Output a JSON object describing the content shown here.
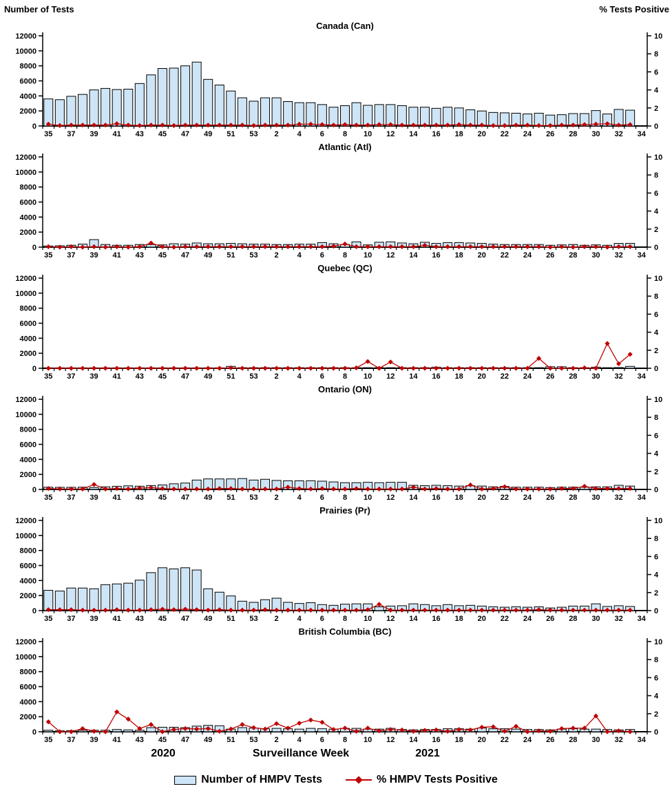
{
  "header": {
    "left_axis_title": "Number of Tests",
    "right_axis_title": "% Tests Positive"
  },
  "axes": {
    "weeks": [
      "35",
      "36",
      "37",
      "38",
      "39",
      "40",
      "41",
      "42",
      "43",
      "44",
      "45",
      "46",
      "47",
      "48",
      "49",
      "50",
      "51",
      "52",
      "53",
      "1",
      "2",
      "3",
      "4",
      "5",
      "6",
      "7",
      "8",
      "9",
      "10",
      "11",
      "12",
      "13",
      "14",
      "15",
      "16",
      "17",
      "18",
      "19",
      "20",
      "21",
      "22",
      "23",
      "24",
      "25",
      "26",
      "27",
      "28",
      "29",
      "30",
      "31",
      "32",
      "33",
      "34"
    ],
    "left_ticks": [
      0,
      2000,
      4000,
      6000,
      8000,
      10000,
      12000
    ],
    "right_ticks": [
      0,
      2,
      4,
      6,
      8,
      10
    ],
    "left_max": 12000,
    "right_max": 10
  },
  "footer": {
    "year_left": "2020",
    "xlabel": "Surveillance Week",
    "year_right": "2021"
  },
  "legend": {
    "bar_label": "Number of HMPV Tests",
    "line_label": "% HMPV Tests Positive"
  },
  "colors": {
    "bar_fill": "#CDE5F6",
    "bar_stroke": "#000000",
    "line": "#C00000",
    "axis": "#000000"
  },
  "chart_data": [
    {
      "type": "bar+line",
      "title": "Canada (Can)",
      "series": [
        {
          "name": "Number of HMPV Tests",
          "type": "bar",
          "axis": "left",
          "values": [
            3600,
            3500,
            3950,
            4200,
            4800,
            5000,
            4850,
            4900,
            5650,
            6800,
            7650,
            7700,
            8000,
            8500,
            6200,
            5450,
            4650,
            3750,
            3300,
            3750,
            3750,
            3250,
            3100,
            3100,
            2850,
            2500,
            2700,
            3100,
            2750,
            2850,
            2850,
            2700,
            2500,
            2500,
            2350,
            2500,
            2400,
            2150,
            2000,
            1800,
            1750,
            1700,
            1600,
            1700,
            1450,
            1500,
            1650,
            1650,
            2050,
            1600,
            2200,
            2100,
            null
          ]
        },
        {
          "name": "% HMPV Tests Positive",
          "type": "line",
          "axis": "right",
          "values": [
            0.2,
            0.05,
            0.1,
            0.1,
            0.1,
            0.1,
            0.25,
            0.1,
            0.05,
            0.1,
            0.1,
            0.05,
            0.1,
            0.1,
            0.1,
            0.1,
            0.1,
            0.1,
            0.05,
            0.1,
            0.1,
            0.1,
            0.2,
            0.2,
            0.15,
            0.1,
            0.15,
            0.1,
            0.1,
            0.15,
            0.15,
            0.1,
            0.1,
            0.1,
            0.1,
            0.1,
            0.15,
            0.1,
            0.1,
            0.05,
            0.05,
            0.1,
            0.1,
            0.05,
            0.05,
            0.1,
            0.1,
            0.15,
            0.2,
            0.25,
            0.1,
            0.15,
            null
          ]
        }
      ]
    },
    {
      "type": "bar+line",
      "title": "Atlantic (Atl)",
      "series": [
        {
          "name": "Number of HMPV Tests",
          "type": "bar",
          "axis": "left",
          "values": [
            150,
            180,
            250,
            400,
            1000,
            350,
            250,
            250,
            350,
            350,
            300,
            450,
            400,
            550,
            450,
            450,
            500,
            450,
            400,
            400,
            350,
            350,
            400,
            400,
            600,
            450,
            350,
            700,
            300,
            650,
            700,
            550,
            450,
            650,
            500,
            600,
            600,
            550,
            500,
            400,
            350,
            350,
            350,
            350,
            250,
            300,
            350,
            250,
            300,
            250,
            500,
            500,
            null
          ]
        },
        {
          "name": "% HMPV Tests Positive",
          "type": "line",
          "axis": "right",
          "values": [
            0.05,
            0,
            0.05,
            0,
            0.05,
            0,
            0.05,
            0,
            0.05,
            0.45,
            0.05,
            0,
            0.05,
            0.05,
            0.05,
            0.05,
            0.05,
            0.05,
            0.05,
            0.05,
            0.05,
            0.05,
            0.05,
            0.05,
            0.05,
            0.1,
            0.35,
            0.05,
            0.05,
            0.05,
            0.05,
            0.05,
            0.05,
            0.2,
            0.05,
            0.05,
            0.05,
            0.05,
            0.05,
            0.05,
            0.05,
            0.05,
            0.05,
            0.05,
            0,
            0.05,
            0,
            0.05,
            0.05,
            0,
            0.05,
            0.05,
            null
          ]
        }
      ]
    },
    {
      "type": "bar+line",
      "title": "Quebec (QC)",
      "series": [
        {
          "name": "Number of HMPV Tests",
          "type": "bar",
          "axis": "left",
          "values": [
            60,
            60,
            60,
            60,
            60,
            60,
            60,
            60,
            60,
            60,
            60,
            60,
            60,
            60,
            60,
            60,
            250,
            80,
            80,
            80,
            80,
            80,
            80,
            80,
            80,
            80,
            80,
            80,
            80,
            80,
            80,
            80,
            80,
            80,
            150,
            80,
            80,
            80,
            80,
            80,
            80,
            80,
            80,
            80,
            200,
            200,
            80,
            80,
            150,
            80,
            100,
            250,
            null
          ]
        },
        {
          "name": "% HMPV Tests Positive",
          "type": "line",
          "axis": "right",
          "values": [
            0,
            0,
            0,
            0,
            0,
            0,
            0,
            0,
            0,
            0,
            0,
            0,
            0,
            0,
            0,
            0,
            0.05,
            0,
            0,
            0,
            0,
            0,
            0,
            0,
            0,
            0,
            0,
            0.05,
            0.75,
            0,
            0.7,
            0,
            0,
            0,
            0,
            0,
            0,
            0,
            0,
            0,
            0,
            0,
            0,
            1.1,
            0,
            0,
            0,
            0.05,
            0,
            2.75,
            0.5,
            1.55,
            null
          ]
        }
      ]
    },
    {
      "type": "bar+line",
      "title": "Ontario (ON)",
      "series": [
        {
          "name": "Number of HMPV Tests",
          "type": "bar",
          "axis": "left",
          "values": [
            300,
            280,
            280,
            300,
            250,
            350,
            420,
            480,
            430,
            520,
            600,
            750,
            850,
            1250,
            1400,
            1400,
            1400,
            1450,
            1250,
            1350,
            1200,
            1150,
            1150,
            1150,
            1100,
            1000,
            900,
            900,
            950,
            900,
            950,
            950,
            550,
            500,
            550,
            500,
            450,
            500,
            450,
            350,
            400,
            300,
            300,
            300,
            250,
            300,
            300,
            300,
            350,
            350,
            550,
            450,
            null
          ]
        },
        {
          "name": "% HMPV Tests Positive",
          "type": "line",
          "axis": "right",
          "values": [
            0.1,
            0.05,
            0.05,
            0.05,
            0.55,
            0.05,
            0.1,
            0.05,
            0.15,
            0.2,
            0.1,
            0.05,
            0.05,
            0.05,
            0.05,
            0.1,
            0.1,
            0.05,
            0.05,
            0.05,
            0.05,
            0.25,
            0.1,
            0.05,
            0.1,
            0.05,
            0.05,
            0.1,
            0.05,
            0.05,
            0.05,
            0.05,
            0.25,
            0.05,
            0.1,
            0.05,
            0.05,
            0.5,
            0.05,
            0.1,
            0.3,
            0.05,
            0.05,
            0.05,
            0.05,
            0.1,
            0.1,
            0.35,
            0.1,
            0.1,
            0.1,
            0.1,
            null
          ]
        }
      ]
    },
    {
      "type": "bar+line",
      "title": "Prairies (Pr)",
      "series": [
        {
          "name": "Number of HMPV Tests",
          "type": "bar",
          "axis": "left",
          "values": [
            2700,
            2600,
            3000,
            3000,
            2900,
            3450,
            3550,
            3650,
            4050,
            5050,
            5700,
            5550,
            5700,
            5400,
            2900,
            2450,
            1950,
            1250,
            1100,
            1450,
            1650,
            1100,
            950,
            1050,
            800,
            700,
            850,
            900,
            900,
            500,
            600,
            650,
            900,
            800,
            650,
            800,
            650,
            700,
            600,
            500,
            450,
            500,
            450,
            500,
            350,
            450,
            600,
            600,
            900,
            550,
            650,
            550,
            null
          ]
        },
        {
          "name": "% HMPV Tests Positive",
          "type": "line",
          "axis": "right",
          "values": [
            0.1,
            0.1,
            0.1,
            0.05,
            0.05,
            0.05,
            0.1,
            0.05,
            0.05,
            0.1,
            0.15,
            0.1,
            0.15,
            0.1,
            0.05,
            0.1,
            0.05,
            0.05,
            0.05,
            0.1,
            0.05,
            0.05,
            0.05,
            0.05,
            0.05,
            0.05,
            0.05,
            0.05,
            0.1,
            0.7,
            0.05,
            0.05,
            0.05,
            0.05,
            0.05,
            0.05,
            0.05,
            0.05,
            0.05,
            0.05,
            0.05,
            0.05,
            0.05,
            0.1,
            0.05,
            0.05,
            0.05,
            0.05,
            0.05,
            0.05,
            0.05,
            0.05,
            null
          ]
        }
      ]
    },
    {
      "type": "bar+line",
      "title": "British Columbia (BC)",
      "series": [
        {
          "name": "Number of HMPV Tests",
          "type": "bar",
          "axis": "left",
          "values": [
            200,
            120,
            150,
            200,
            200,
            200,
            300,
            250,
            200,
            550,
            600,
            600,
            550,
            750,
            850,
            800,
            350,
            550,
            500,
            400,
            450,
            400,
            350,
            450,
            400,
            350,
            450,
            450,
            350,
            350,
            450,
            300,
            250,
            300,
            300,
            400,
            400,
            350,
            500,
            400,
            400,
            350,
            300,
            300,
            250,
            350,
            400,
            350,
            350,
            300,
            250,
            300,
            null
          ]
        },
        {
          "name": "% HMPV Tests Positive",
          "type": "line",
          "axis": "right",
          "values": [
            1.1,
            0,
            0,
            0.35,
            0.05,
            0,
            2.2,
            1.4,
            0.35,
            0.8,
            0,
            0.25,
            0.35,
            0.3,
            0.35,
            0.05,
            0.3,
            0.8,
            0.45,
            0.3,
            0.9,
            0.4,
            0.95,
            1.3,
            1.05,
            0.25,
            0.4,
            0.05,
            0.4,
            0.1,
            0.25,
            0.2,
            0.05,
            0.15,
            0.2,
            0.05,
            0.25,
            0.2,
            0.5,
            0.55,
            0.05,
            0.6,
            0,
            0.1,
            0.05,
            0.35,
            0.4,
            0.4,
            1.75,
            0,
            0.1,
            0,
            null
          ]
        }
      ]
    }
  ]
}
